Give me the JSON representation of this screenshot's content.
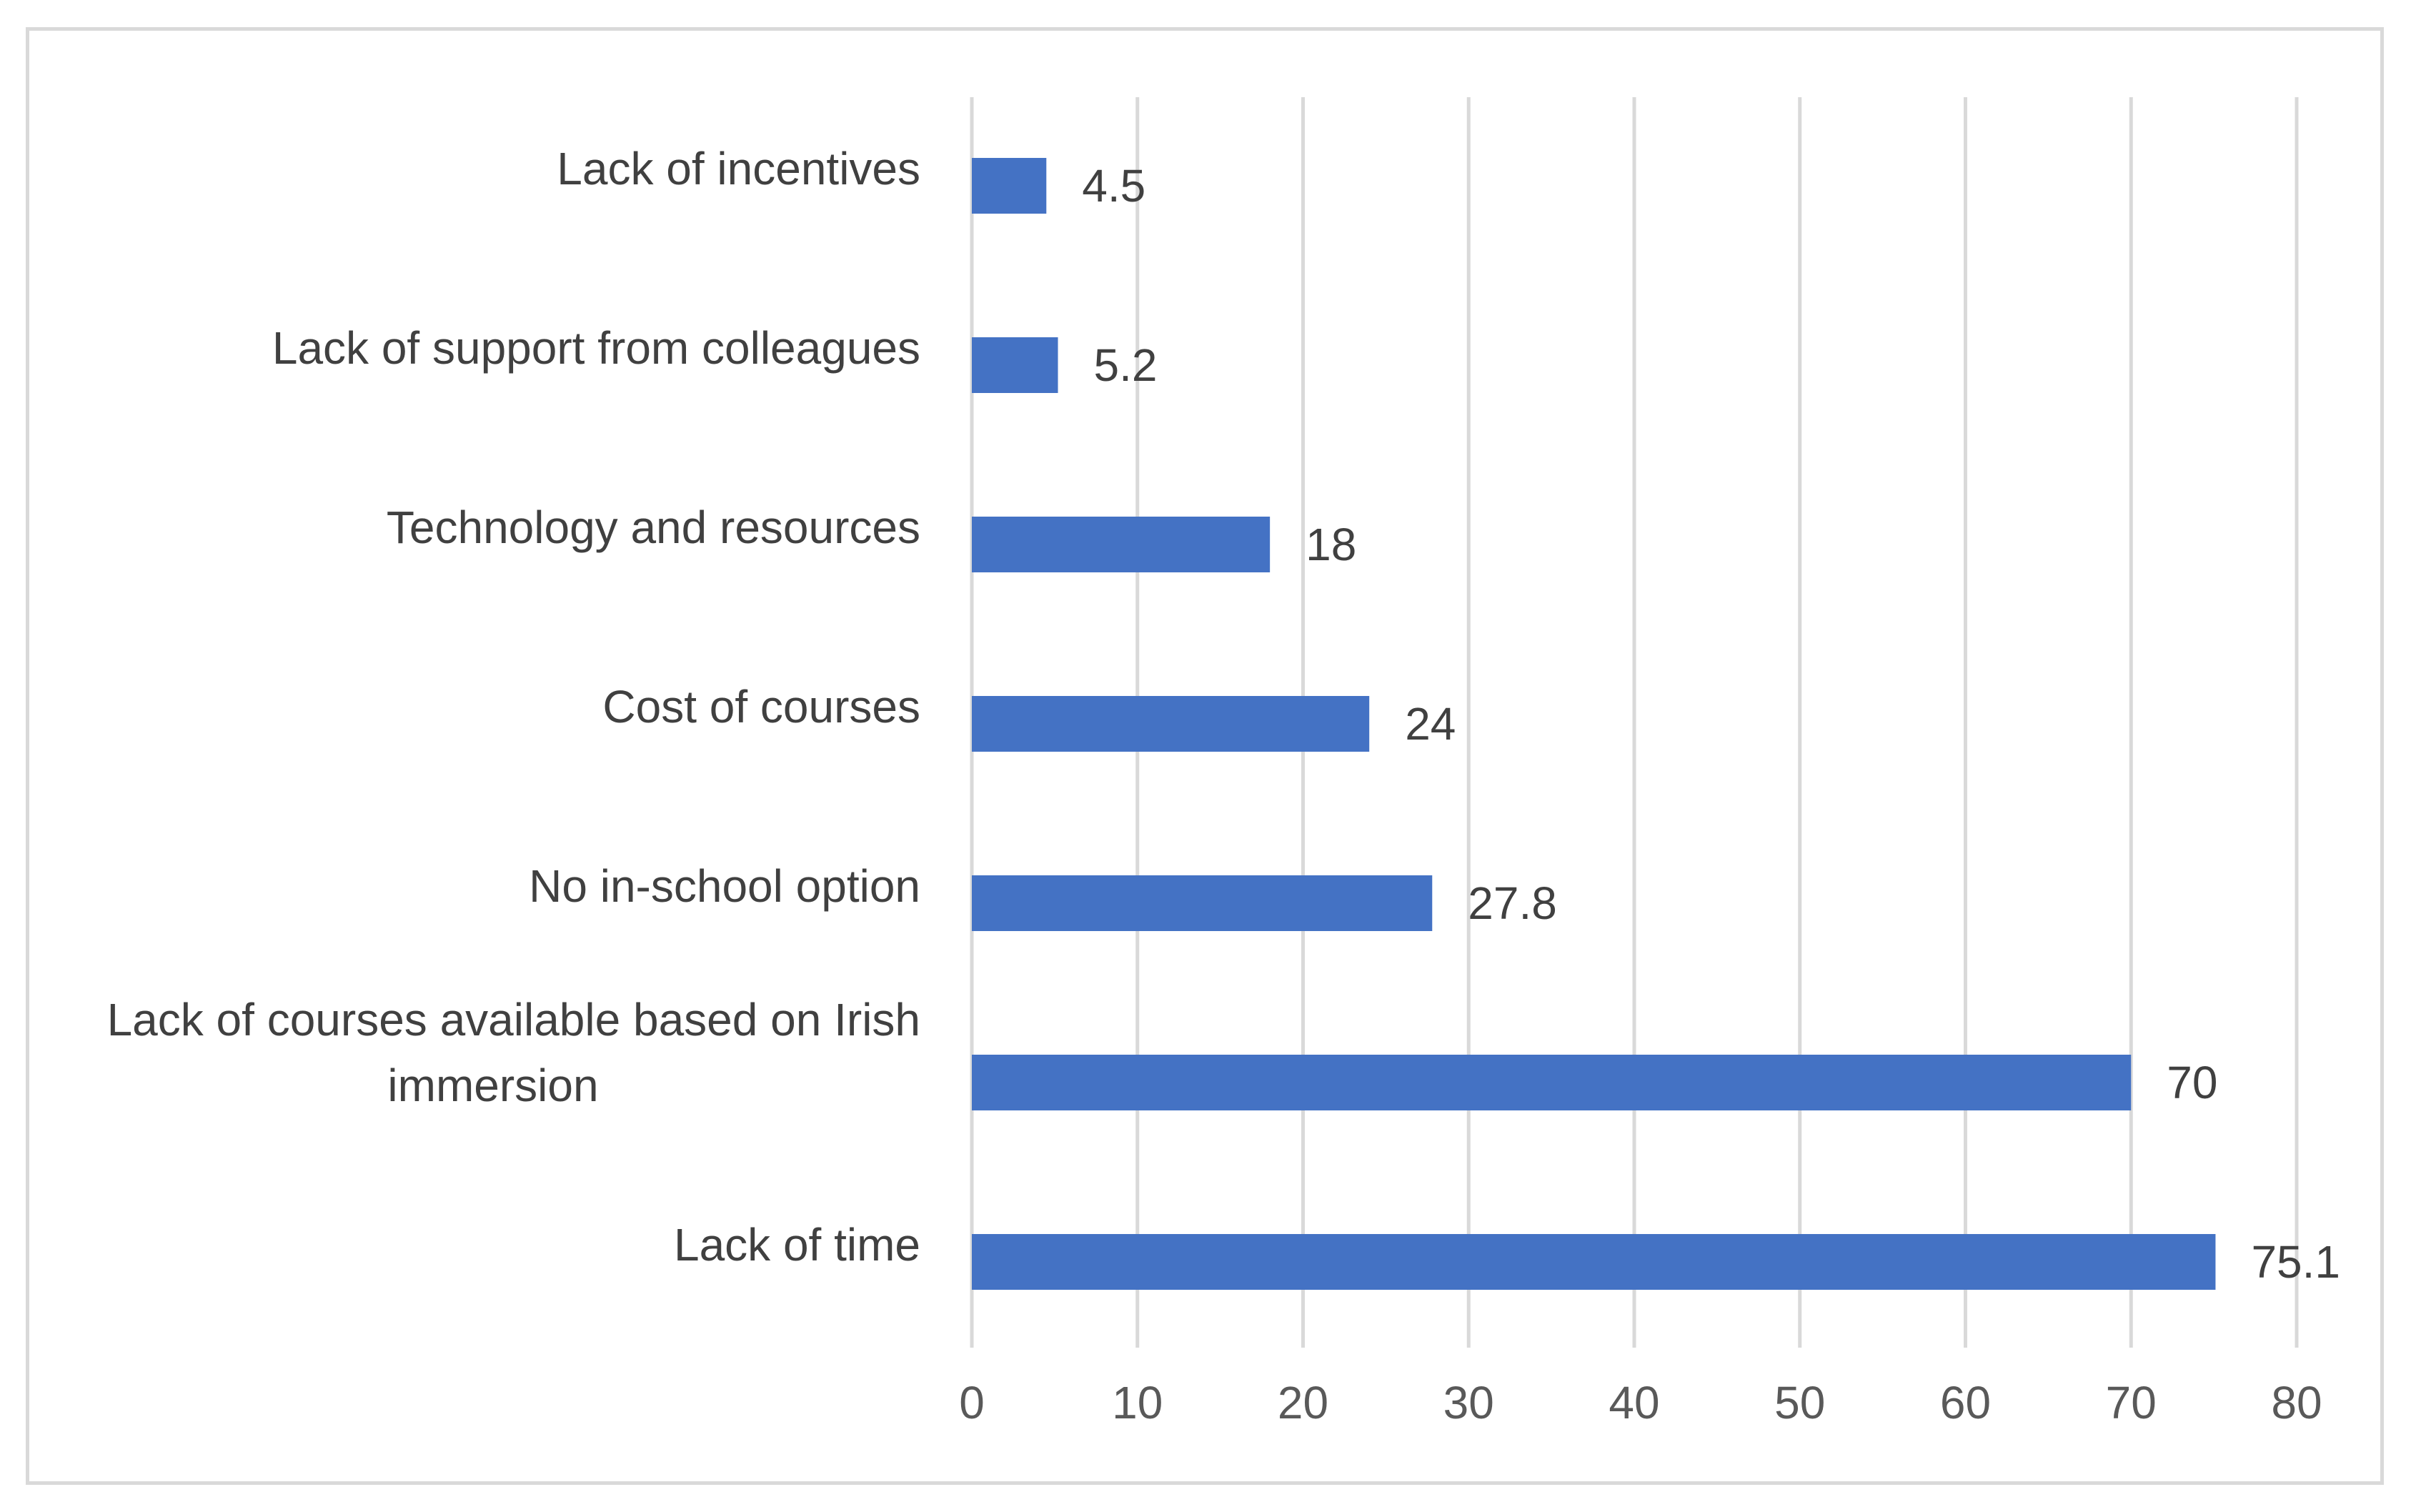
{
  "chart_data": {
    "type": "bar",
    "orientation": "horizontal",
    "title": "",
    "xlabel": "",
    "ylabel": "",
    "categories": [
      "Lack of incentives",
      "Lack of support from colleagues",
      "Technology and resources",
      "Cost of courses",
      "No in-school option",
      "Lack of courses available based on Irish immersion",
      "Lack of time"
    ],
    "category_lines": [
      [
        "Lack of incentives"
      ],
      [
        "Lack of support from colleagues"
      ],
      [
        "Technology and resources"
      ],
      [
        "Cost of courses"
      ],
      [
        "No in-school option"
      ],
      [
        "Lack of courses available based on Irish",
        "immersion"
      ],
      [
        "Lack of time"
      ]
    ],
    "values": [
      4.5,
      5.2,
      18,
      24,
      27.8,
      70,
      75.1
    ],
    "value_labels": [
      "4.5",
      "5.2",
      "18",
      "24",
      "27.8",
      "70",
      "75.1"
    ],
    "xlim": [
      0,
      80
    ],
    "xticks": [
      0,
      10,
      20,
      30,
      40,
      50,
      60,
      70,
      80
    ],
    "xtick_labels": [
      "0",
      "10",
      "20",
      "30",
      "40",
      "50",
      "60",
      "70",
      "80"
    ],
    "grid": true,
    "legend": "none",
    "colors": {
      "bar": "#4472c4",
      "grid": "#d9d9d9",
      "text": "#404040",
      "tick_text": "#595959",
      "border": "#d9d9d9"
    }
  }
}
